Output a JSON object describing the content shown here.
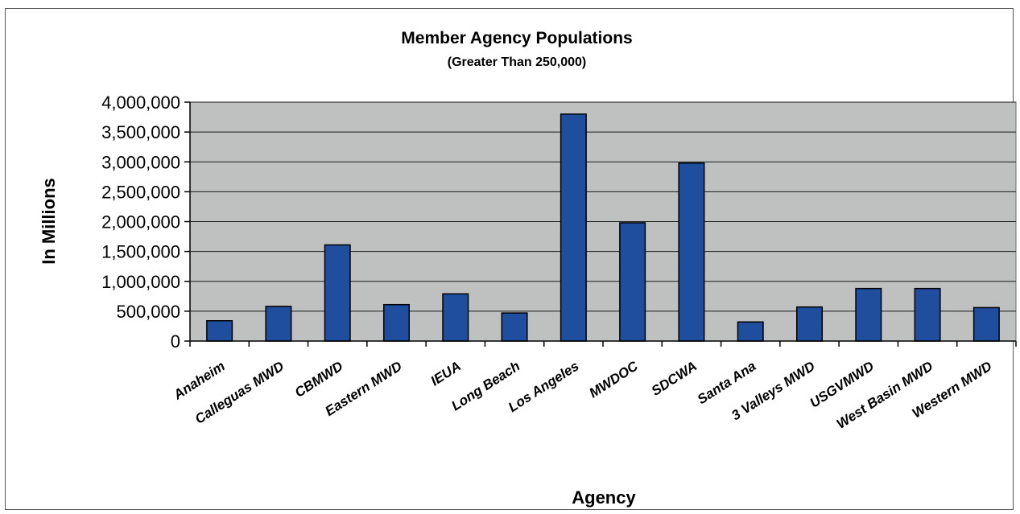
{
  "chart_data": {
    "type": "bar",
    "title": "Member Agency Populations",
    "subtitle": "(Greater Than 250,000)",
    "xlabel": "Agency",
    "ylabel": "In Millions",
    "ylim": [
      0,
      4000000
    ],
    "yticks": [
      0,
      500000,
      1000000,
      1500000,
      2000000,
      2500000,
      3000000,
      3500000,
      4000000
    ],
    "ytick_labels": [
      "0",
      "500,000",
      "1,000,000",
      "1,500,000",
      "2,000,000",
      "2,500,000",
      "3,000,000",
      "3,500,000",
      "4,000,000"
    ],
    "grid": true,
    "legend": "none",
    "categories": [
      "Anaheim",
      "Calleguas MWD",
      "CBMWD",
      "Eastern MWD",
      "IEUA",
      "Long Beach",
      "Los Angeles",
      "MWDOC",
      "SDCWA",
      "Santa Ana",
      "3 Valleys MWD",
      "USGVMWD",
      "West Basin MWD",
      "Western MWD"
    ],
    "values": [
      340000,
      580000,
      1610000,
      610000,
      790000,
      470000,
      3800000,
      1980000,
      2980000,
      320000,
      570000,
      880000,
      880000,
      560000
    ],
    "colors": {
      "bar": "#1f4e9e",
      "bar_outline": "#000000",
      "plot_background": "#bfc1c0",
      "grid": "#1a1a1a"
    }
  }
}
